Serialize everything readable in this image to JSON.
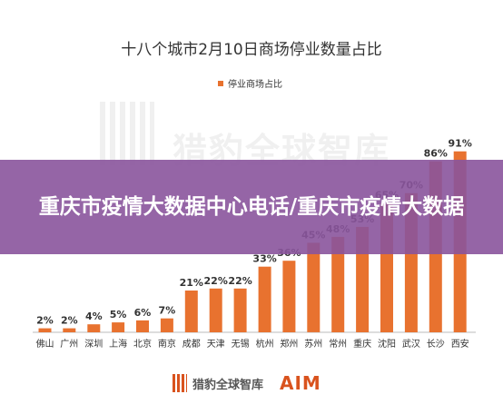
{
  "chart_data": {
    "type": "bar",
    "title": "十八个城市2月10日商场停业数量占比",
    "legend": [
      "停业商场占比"
    ],
    "legend_position": "top-center",
    "categories": [
      "佛山",
      "广州",
      "深圳",
      "上海",
      "北京",
      "南京",
      "成都",
      "天津",
      "无锡",
      "杭州",
      "郑州",
      "苏州",
      "常州",
      "重庆",
      "沈阳",
      "武汉",
      "长沙",
      "西安"
    ],
    "series": [
      {
        "name": "停业商场占比",
        "values": [
          2,
          2,
          4,
          5,
          6,
          7,
          21,
          22,
          22,
          33,
          36,
          45,
          48,
          53,
          65,
          70,
          86,
          91
        ],
        "labels": [
          "2%",
          "2%",
          "4%",
          "5%",
          "6%",
          "7%",
          "21%",
          "22%",
          "22%",
          "33%",
          "36%",
          "45%",
          "48%",
          "53%",
          "65%",
          "70%",
          "86%",
          "91%"
        ]
      }
    ],
    "ylim": [
      0,
      100
    ],
    "grid": false,
    "bar_color": "#E8722F"
  },
  "watermark": "猎豹全球智库",
  "banner": {
    "title": "重庆市疫情大数据中心电话/重庆市疫情大数据"
  },
  "footer": {
    "logo_text": "猎豹全球智库",
    "aim_text": "AIM"
  }
}
